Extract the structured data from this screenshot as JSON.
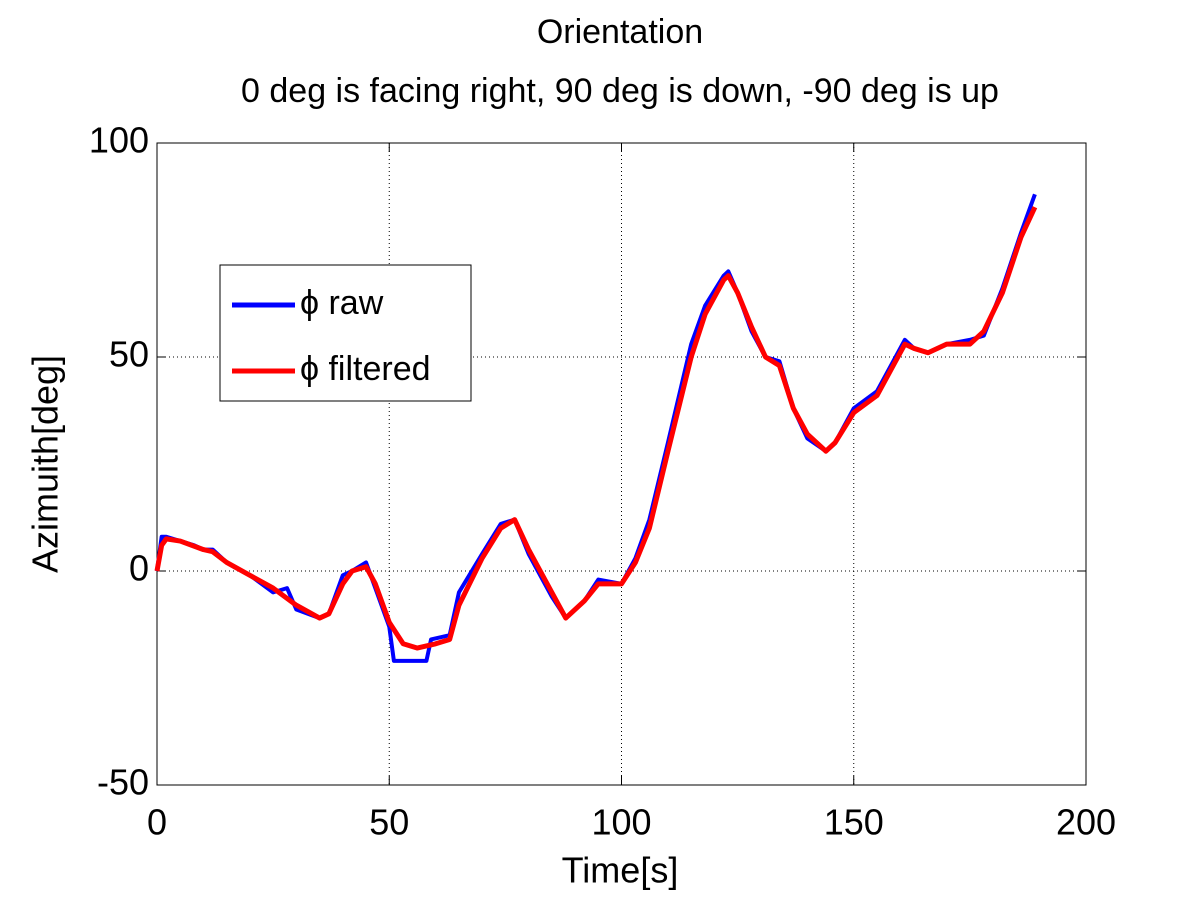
{
  "chart_data": {
    "type": "line",
    "title": "Orientation",
    "subtitle": "0 deg is facing right, 90 deg is down, -90 deg is up",
    "x_label": "Time[s]",
    "y_label": "Azimuith[deg]",
    "xlim": [
      0,
      200
    ],
    "xticks": [
      0,
      50,
      100,
      150,
      200
    ],
    "ylim": [
      -50,
      100
    ],
    "yticks": [
      -50,
      0,
      50,
      100
    ],
    "grid": true,
    "legend": "northwest",
    "series": [
      {
        "name": "ϕ raw",
        "color": "#0000ff",
        "x": [
          0,
          1,
          2,
          5,
          8,
          10,
          12,
          15,
          20,
          25,
          28,
          30,
          35,
          37,
          40,
          42,
          45,
          47,
          50,
          51,
          58,
          59,
          63,
          65,
          70,
          74,
          77,
          80,
          85,
          88,
          92,
          95,
          100,
          103,
          106,
          110,
          115,
          118,
          122,
          123,
          125,
          128,
          131,
          134,
          137,
          140,
          144,
          146,
          150,
          155,
          158,
          161,
          163,
          166,
          170,
          175,
          178,
          182,
          186,
          189
        ],
        "values": [
          0,
          8,
          8,
          7,
          6,
          5,
          5,
          2,
          -1,
          -5,
          -4,
          -9,
          -11,
          -10,
          -1,
          0,
          2,
          -4,
          -13,
          -21,
          -21,
          -16,
          -15,
          -5,
          4,
          11,
          12,
          4,
          -6,
          -11,
          -7,
          -2,
          -3,
          3,
          12,
          30,
          53,
          62,
          69,
          70,
          65,
          56,
          50,
          49,
          38,
          31,
          28,
          30,
          38,
          42,
          48,
          54,
          52,
          51,
          53,
          54,
          55,
          66,
          79,
          88
        ]
      },
      {
        "name": "ϕ filtered",
        "color": "#ff0000",
        "x": [
          0,
          1,
          2,
          5,
          10,
          12,
          15,
          20,
          25,
          30,
          35,
          37,
          40,
          42,
          45,
          47,
          50,
          53,
          56,
          60,
          63,
          65,
          70,
          74,
          77,
          80,
          85,
          88,
          92,
          95,
          100,
          103,
          106,
          110,
          115,
          118,
          122,
          123,
          125,
          128,
          131,
          134,
          137,
          140,
          144,
          146,
          150,
          155,
          158,
          161,
          163,
          166,
          170,
          175,
          178,
          182,
          186,
          189
        ],
        "values": [
          0,
          6,
          7.5,
          7,
          5,
          4.5,
          2,
          -1,
          -4,
          -8,
          -11,
          -10,
          -3,
          0,
          1,
          -3,
          -12,
          -17,
          -18,
          -17,
          -16,
          -8,
          3,
          10,
          12,
          5,
          -5,
          -11,
          -7,
          -3,
          -3,
          2,
          10,
          28,
          50,
          60,
          68,
          69,
          65,
          57,
          50,
          48,
          38,
          32,
          28,
          30,
          37,
          41,
          47,
          53,
          52,
          51,
          53,
          53,
          56,
          65,
          78,
          85
        ]
      }
    ]
  }
}
